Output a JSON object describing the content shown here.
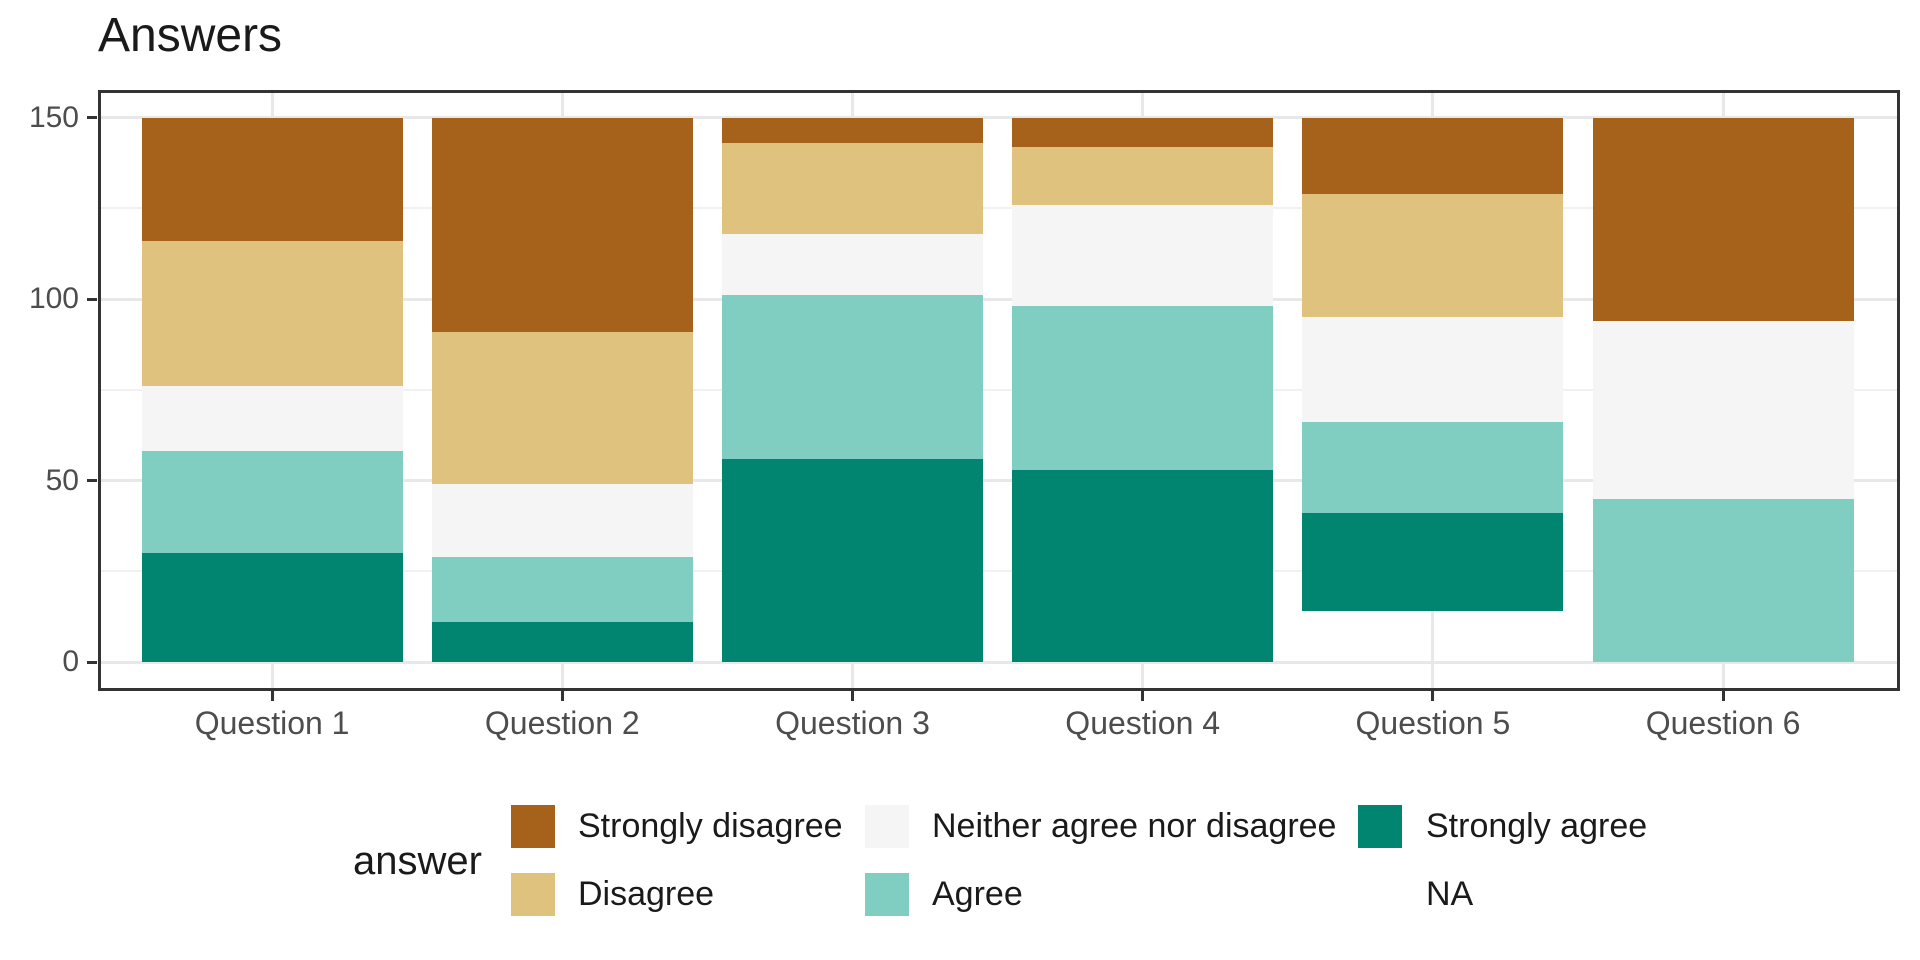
{
  "title": "Answers",
  "legend": {
    "title": "answer",
    "columns": [
      [
        "Strongly disagree",
        "Disagree"
      ],
      [
        "Neither agree nor disagree",
        "Agree"
      ],
      [
        "Strongly agree",
        "NA"
      ]
    ]
  },
  "chart_data": {
    "type": "bar",
    "stacked": true,
    "title": "Answers",
    "legend_title": "answer",
    "legend_position": "bottom",
    "categories": [
      "Question 1",
      "Question 2",
      "Question 3",
      "Question 4",
      "Question 5",
      "Question 6"
    ],
    "series": [
      {
        "name": "Strongly disagree",
        "color": "#A6611A",
        "values": [
          34,
          59,
          7,
          8,
          21,
          56
        ]
      },
      {
        "name": "Disagree",
        "color": "#DFC27D",
        "values": [
          40,
          42,
          25,
          16,
          34,
          0
        ]
      },
      {
        "name": "Neither agree nor disagree",
        "color": "#F5F5F5",
        "values": [
          18,
          20,
          17,
          28,
          29,
          49
        ]
      },
      {
        "name": "Agree",
        "color": "#80CDC1",
        "values": [
          28,
          18,
          45,
          45,
          25,
          45
        ]
      },
      {
        "name": "Strongly agree",
        "color": "#018571",
        "values": [
          30,
          11,
          56,
          53,
          27,
          0
        ]
      },
      {
        "name": "NA",
        "color": "transparent",
        "values": [
          0,
          0,
          0,
          0,
          14,
          0
        ]
      }
    ],
    "stack_order_bottom_to_top": [
      "NA",
      "Strongly agree",
      "Agree",
      "Neither agree nor disagree",
      "Disagree",
      "Strongly disagree"
    ],
    "xlabel": "",
    "ylabel": "",
    "ylim": [
      0,
      150
    ],
    "yticks": [
      0,
      50,
      100,
      150
    ],
    "yticks_minor": [
      25,
      75,
      125
    ],
    "grid": true,
    "panel_border_color": "#333333",
    "major_grid_color": "#e8e8e8",
    "minor_grid_color": "#f1f1f1",
    "axis_text_color": "#4d4d4d",
    "bar_totals": [
      150,
      150,
      150,
      150,
      150,
      150
    ]
  }
}
